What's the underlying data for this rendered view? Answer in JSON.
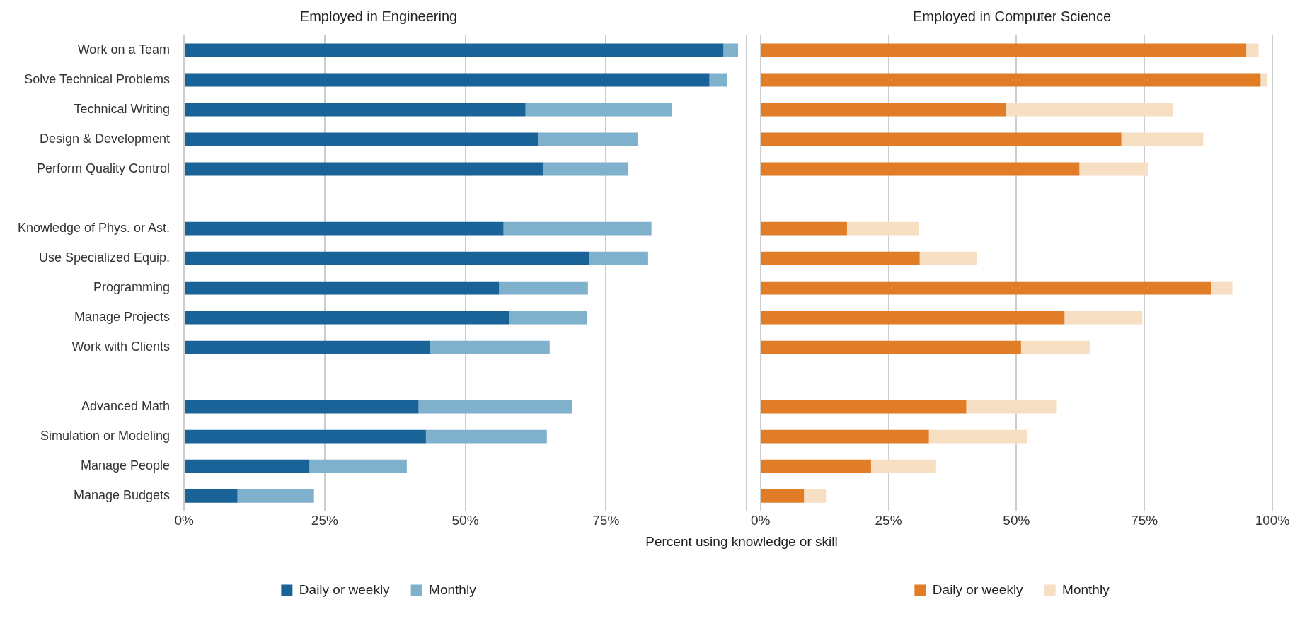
{
  "chart_data": [
    {
      "type": "bar",
      "orientation": "horizontal",
      "stacked": true,
      "title": "Employed in Engineering",
      "xlabel": "Percent using knowledge or skill",
      "categories": [
        "Work on a Team",
        "Solve Technical Problems",
        "Technical Writing",
        "Design & Development",
        "Perform Quality Control",
        null,
        "Knowledge of Phys. or Ast.",
        "Use Specialized Equip.",
        "Programming",
        "Manage Projects",
        "Work with Clients",
        null,
        "Advanced Math",
        "Simulation or Modeling",
        "Manage People",
        "Manage Budgets"
      ],
      "series": [
        {
          "name": "Daily or weekly",
          "color": "#1a6399",
          "values": [
            95.9,
            93.4,
            60.7,
            62.9,
            63.8,
            null,
            56.8,
            72,
            56,
            57.8,
            43.7,
            null,
            41.7,
            43,
            22.3,
            9.5
          ]
        },
        {
          "name": "Monthly",
          "color": "#7fb0cc",
          "values": [
            2.6,
            3.1,
            26,
            17.8,
            15.2,
            null,
            26.3,
            10.5,
            15.8,
            13.9,
            21.3,
            null,
            27.3,
            21.5,
            17.3,
            13.6
          ]
        }
      ],
      "xlim": [
        0,
        100
      ],
      "xticks": [
        {
          "value": 0,
          "label": "0%"
        },
        {
          "value": 25,
          "label": "25%"
        },
        {
          "value": 50,
          "label": "50%"
        },
        {
          "value": 75,
          "label": "75%"
        },
        {
          "value": 100,
          "label": null
        }
      ],
      "grid": "x",
      "legend": "bottom"
    },
    {
      "type": "bar",
      "orientation": "horizontal",
      "stacked": true,
      "title": "Employed in Computer Science",
      "categories": [
        null,
        null,
        null,
        null,
        null,
        null,
        null,
        null,
        null,
        null,
        null,
        null,
        null,
        null,
        null,
        null
      ],
      "series": [
        {
          "name": "Daily or weekly",
          "color": "#e07d26",
          "values": [
            94.9,
            97.7,
            48,
            70.5,
            62.3,
            null,
            16.9,
            31.1,
            88,
            59.4,
            50.9,
            null,
            40.2,
            32.9,
            21.6,
            8.5
          ]
        },
        {
          "name": "Monthly",
          "color": "#f7dfc3",
          "values": [
            2.4,
            1.3,
            32.6,
            16,
            13.5,
            null,
            14.1,
            11.2,
            4.2,
            15.2,
            13.4,
            null,
            17.7,
            19.2,
            12.7,
            4.3
          ]
        }
      ],
      "xlim": [
        0,
        100
      ],
      "xticks": [
        {
          "value": 0,
          "label": "0%"
        },
        {
          "value": 25,
          "label": "25%"
        },
        {
          "value": 50,
          "label": "50%"
        },
        {
          "value": 75,
          "label": "75%"
        },
        {
          "value": 100,
          "label": "100%"
        }
      ],
      "grid": "x",
      "legend": "bottom",
      "tick_labels": "x"
    }
  ]
}
